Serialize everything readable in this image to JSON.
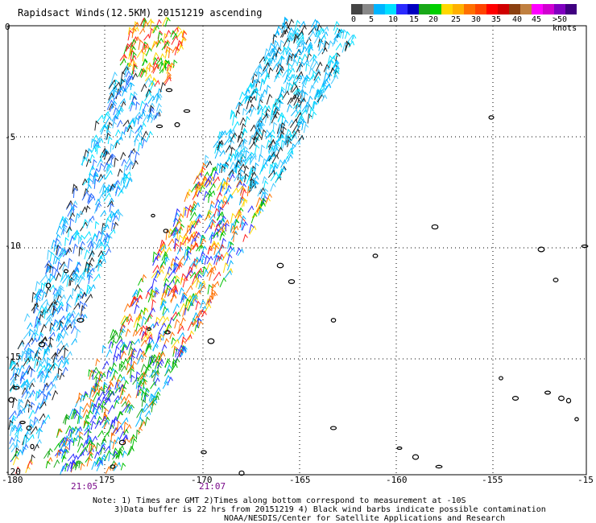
{
  "title": "Rapidsact Winds(12.5KM) 20151219 ascending",
  "legend": {
    "labels": [
      "0",
      "5",
      "10",
      "15",
      "20",
      "25",
      "30",
      "35",
      "40",
      "45",
      ">50 knots"
    ],
    "colors": [
      "#444444",
      "#888888",
      "#00b4ff",
      "#00e0ff",
      "#2a2aff",
      "#0000c0",
      "#18a818",
      "#00d000",
      "#ffd800",
      "#ffb000",
      "#ff7000",
      "#ff4400",
      "#ff0000",
      "#d00000",
      "#8b4010",
      "#c08040",
      "#ff00ff",
      "#d000d0",
      "#8000c0",
      "#400080"
    ]
  },
  "map": {
    "lat_labels": [
      "0",
      "-5",
      "-10",
      "-15",
      "-20"
    ],
    "lon_labels": [
      "-180",
      "-175",
      "-170",
      "-165",
      "-160",
      "-155",
      "-15"
    ]
  },
  "times": [
    "21:05",
    "21:07"
  ],
  "notes": [
    "Note: 1) Times are GMT 2)Times along bottom correspond to measurement at -10S",
    "3)Data buffer is 22 hrs from 20151219 4) Black wind barbs indicate possible contamination",
    "NOAA/NESDIS/Center for Satellite Applications and Research"
  ]
}
